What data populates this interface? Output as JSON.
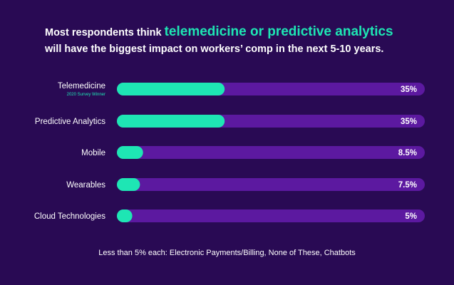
{
  "title": {
    "prefix": "Most respondents think",
    "highlight": "telemedicine or predictive analytics",
    "line2": "will have the biggest impact on workers’ comp in the next 5-10 years."
  },
  "colors": {
    "background": "#290a54",
    "track": "#5c19a0",
    "fill": "#1ee6b4"
  },
  "chart_data": {
    "type": "bar",
    "orientation": "horizontal",
    "categories": [
      "Telemedicine",
      "Predictive Analytics",
      "Mobile",
      "Wearables",
      "Cloud Technologies"
    ],
    "values": [
      35,
      35,
      8.5,
      7.5,
      5
    ],
    "value_labels": [
      "35%",
      "35%",
      "8.5%",
      "7.5%",
      "5%"
    ],
    "category_sublabels": [
      "2020 Survey Winner",
      "",
      "",
      "",
      ""
    ],
    "xlim": [
      0,
      100
    ]
  },
  "footnote": "Less than 5% each: Electronic Payments/Billing, None of These, Chatbots"
}
